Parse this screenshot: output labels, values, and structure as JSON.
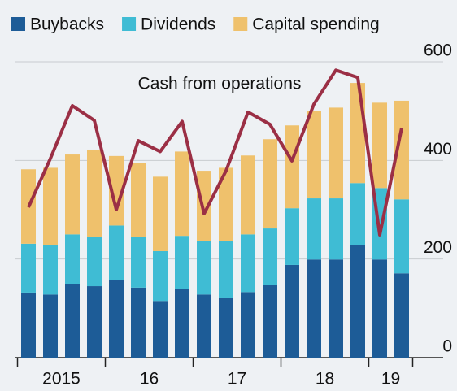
{
  "chart_data": {
    "type": "bar",
    "stacked": true,
    "annotation": "Cash from operations",
    "categories": [
      "2015",
      null,
      null,
      null,
      "16",
      null,
      null,
      null,
      "17",
      null,
      null,
      null,
      "18",
      null,
      null,
      null,
      "19",
      null
    ],
    "series": [
      {
        "name": "Buybacks",
        "color": "#1d5c97",
        "values": [
          132,
          128,
          150,
          145,
          158,
          142,
          115,
          140,
          128,
          122,
          133,
          147,
          188,
          199,
          199,
          229,
          199,
          171
        ]
      },
      {
        "name": "Dividends",
        "color": "#3fbcd4",
        "values": [
          99,
          101,
          100,
          100,
          110,
          103,
          101,
          107,
          108,
          114,
          117,
          115,
          115,
          124,
          124,
          125,
          145,
          150
        ]
      },
      {
        "name": "Capital spending",
        "color": "#efc16c",
        "values": [
          151,
          156,
          162,
          177,
          141,
          150,
          151,
          171,
          143,
          149,
          160,
          181,
          168,
          178,
          184,
          203,
          173,
          200
        ]
      },
      {
        "name": "Cash from operations",
        "type": "line",
        "color": "#9b2f45",
        "values": [
          305,
          404,
          511,
          481,
          300,
          440,
          418,
          479,
          292,
          379,
          498,
          473,
          399,
          514,
          583,
          568,
          249,
          466
        ]
      }
    ],
    "ylim": [
      0,
      600
    ],
    "yticks": [
      0,
      200,
      400,
      600
    ],
    "grid": true
  }
}
